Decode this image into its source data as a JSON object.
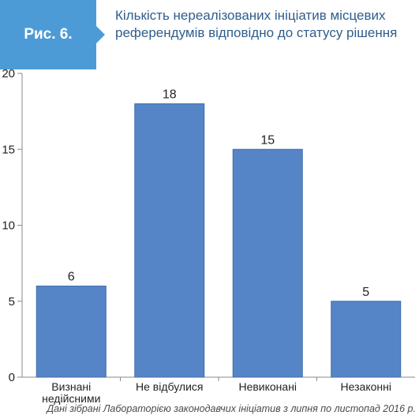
{
  "figure": {
    "label": "Рис. 6.",
    "title": "Кількість нереалізованих ініціатив місцевих референдумів відповідно до статусу рішення"
  },
  "chart_data": {
    "type": "bar",
    "categories": [
      [
        "Визнані",
        "недійсними"
      ],
      [
        "Не відбулися"
      ],
      [
        "Невиконані"
      ],
      [
        "Незаконні"
      ]
    ],
    "values": [
      6,
      18,
      15,
      5
    ],
    "data_labels": [
      "6",
      "18",
      "15",
      "5"
    ],
    "ylim": [
      0,
      20
    ],
    "yticks": [
      0,
      5,
      10,
      15,
      20
    ],
    "grid": false,
    "legend": "none",
    "title": "",
    "xlabel": "",
    "ylabel": "",
    "bar_color": "#5585c6"
  },
  "source_note": "Дані зібрані Лабораторією законодавчих ініціатив з липня по листопад 2016 р.",
  "colors": {
    "accent": "#4d9bd6",
    "title_text": "#2f5d8c",
    "bar": "#5585c6",
    "bar_border": "#3f6fae"
  }
}
